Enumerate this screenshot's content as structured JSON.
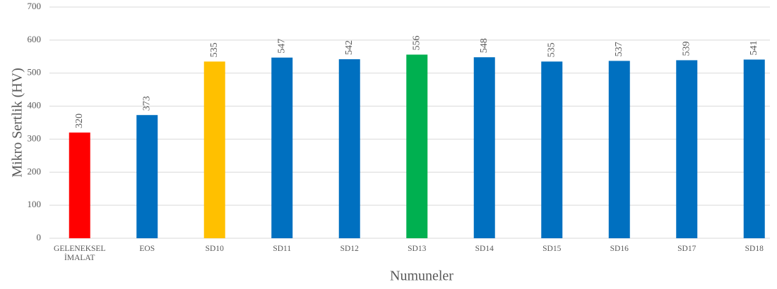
{
  "chart_data": {
    "type": "bar",
    "x_label": "Numuneler",
    "y_label": "Mikro Sertlik (HV)",
    "categories": [
      "GELENEKSEL İMALAT",
      "EOS",
      "SD10",
      "SD11",
      "SD12",
      "SD13",
      "SD14",
      "SD15",
      "SD16",
      "SD17",
      "SD18"
    ],
    "values": [
      320,
      373,
      535,
      547,
      542,
      556,
      548,
      535,
      537,
      539,
      541
    ],
    "colors": [
      "#ff0000",
      "#0070c0",
      "#ffc000",
      "#0070c0",
      "#0070c0",
      "#00b050",
      "#0070c0",
      "#0070c0",
      "#0070c0",
      "#0070c0",
      "#0070c0"
    ],
    "ylim": [
      0,
      700
    ],
    "yticks": [
      0,
      100,
      200,
      300,
      400,
      500,
      600,
      700
    ],
    "grid": true,
    "data_labels": true
  }
}
